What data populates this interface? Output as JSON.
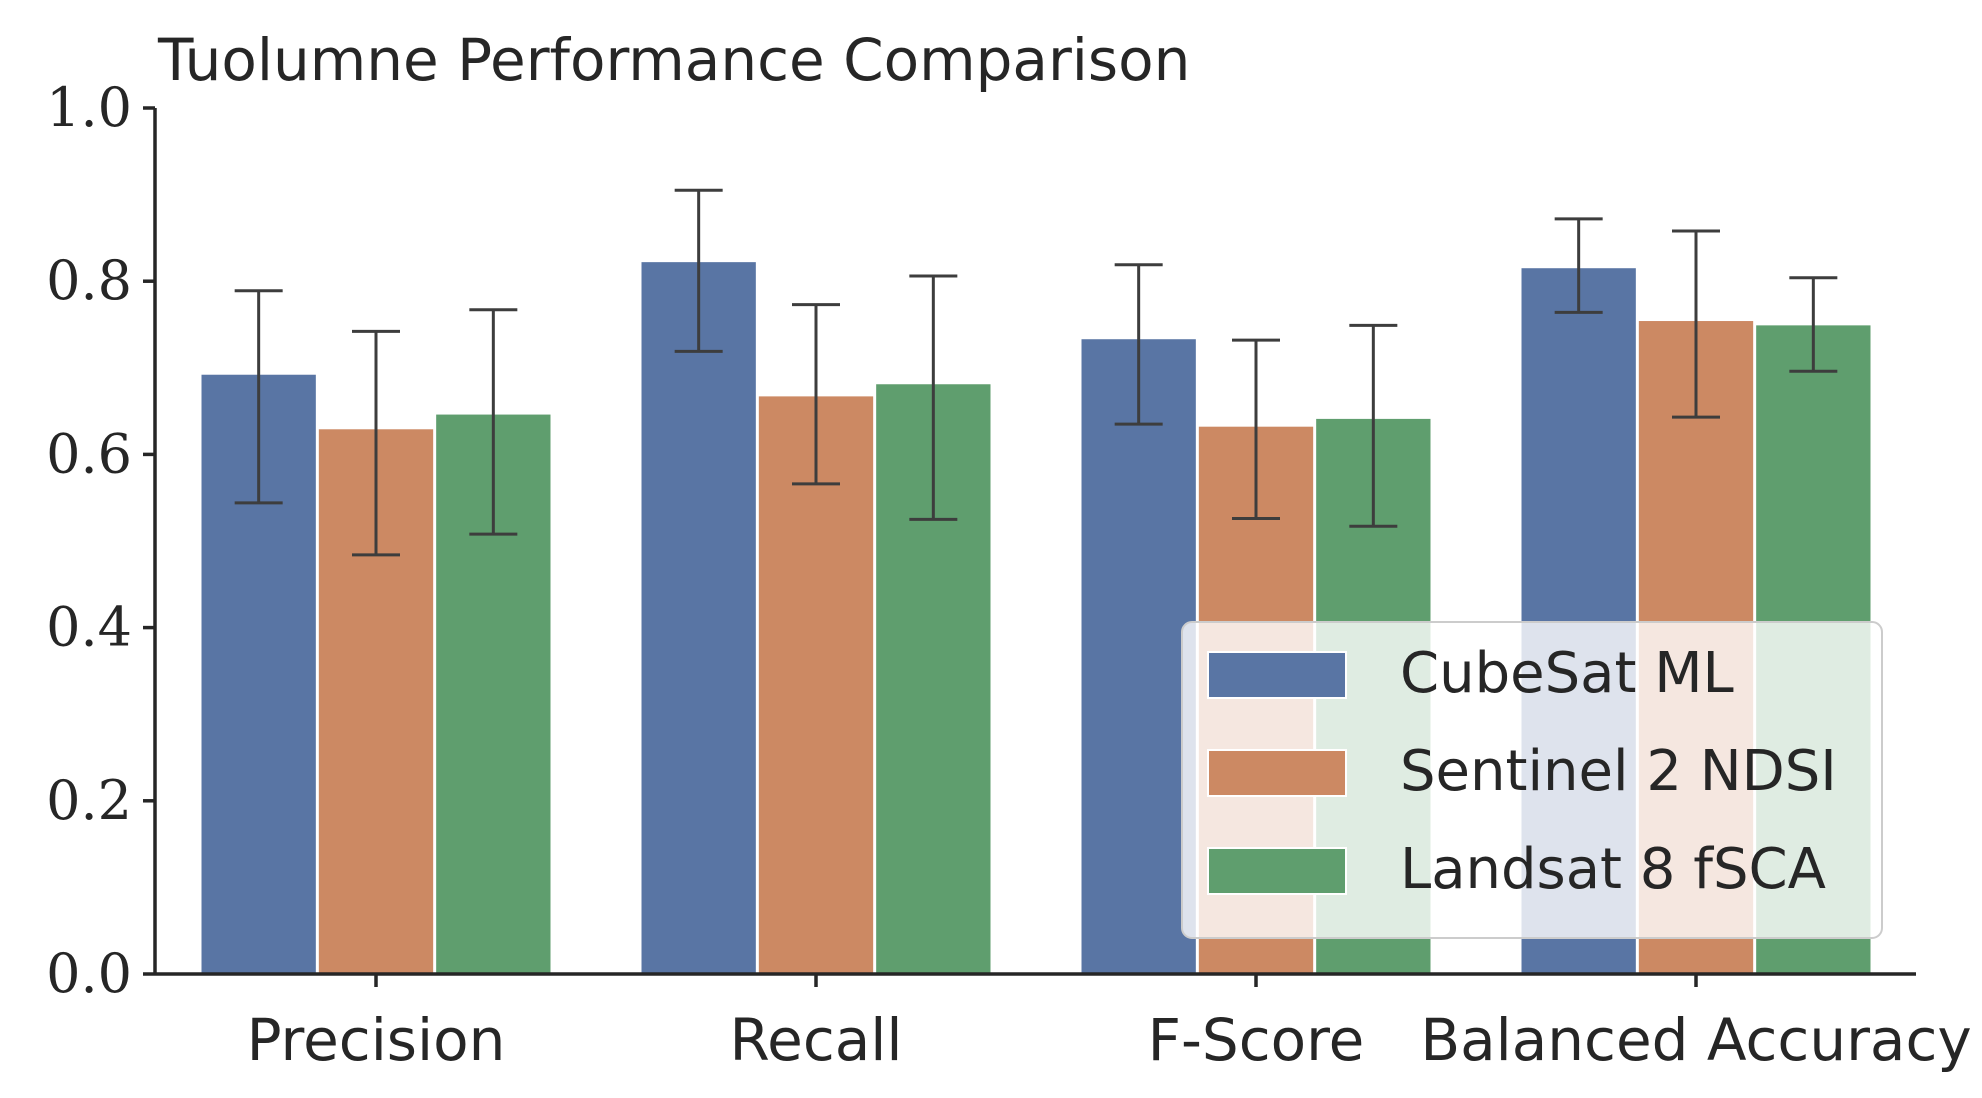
{
  "chart_data": {
    "type": "bar",
    "title": "Tuolumne Performance Comparison",
    "xlabel": "",
    "ylabel": "",
    "categories": [
      "Precision",
      "Recall",
      "F-Score",
      "Balanced Accuracy"
    ],
    "series": [
      {
        "name": "CubeSat ML",
        "color": "#5975a4",
        "values": [
          0.692,
          0.822,
          0.733,
          0.815
        ],
        "err_low": [
          0.544,
          0.719,
          0.635,
          0.764
        ],
        "err_high": [
          0.789,
          0.905,
          0.819,
          0.872
        ]
      },
      {
        "name": "Sentinel 2 NDSI",
        "color": "#cc8963",
        "values": [
          0.629,
          0.667,
          0.632,
          0.754
        ],
        "err_low": [
          0.484,
          0.566,
          0.526,
          0.643
        ],
        "err_high": [
          0.742,
          0.773,
          0.732,
          0.858
        ]
      },
      {
        "name": "Landsat 8 fSCA",
        "color": "#5f9e6e",
        "values": [
          0.646,
          0.681,
          0.641,
          0.749
        ],
        "err_low": [
          0.508,
          0.525,
          0.517,
          0.696
        ],
        "err_high": [
          0.767,
          0.806,
          0.749,
          0.804
        ]
      }
    ],
    "ylim": [
      0,
      1.0
    ],
    "yticks": [
      "0.0",
      "0.2",
      "0.4",
      "0.6",
      "0.8",
      "1.0"
    ],
    "grid": false,
    "legend_position": "lower-right"
  }
}
